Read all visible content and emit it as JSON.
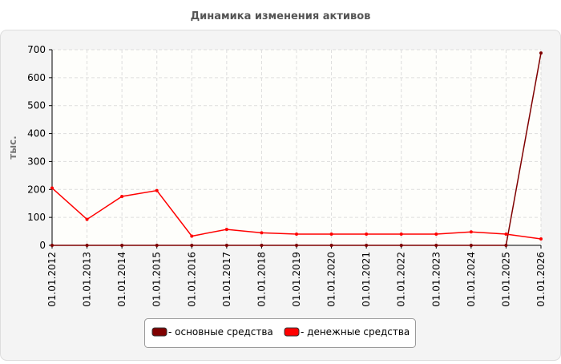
{
  "chart_data": {
    "type": "line",
    "title": "Динамика изменения активов",
    "y_label": "тыс.",
    "categories": [
      "01.01.2012",
      "01.01.2013",
      "01.01.2014",
      "01.01.2015",
      "01.01.2016",
      "01.01.2017",
      "01.01.2018",
      "01.01.2019",
      "01.01.2020",
      "01.01.2021",
      "01.01.2022",
      "01.01.2023",
      "01.01.2024",
      "01.01.2025",
      "01.01.2026"
    ],
    "series": [
      {
        "name": "- основные средства",
        "color": "#7f0000",
        "values": [
          0,
          0,
          0,
          0,
          0,
          0,
          0,
          0,
          0,
          0,
          0,
          0,
          0,
          0,
          688
        ]
      },
      {
        "name": "- денежные средства",
        "color": "#ff0000",
        "values": [
          205,
          93,
          175,
          196,
          33,
          57,
          45,
          40,
          40,
          40,
          40,
          40,
          48,
          40,
          23
        ]
      }
    ],
    "ylim": [
      0,
      700
    ],
    "yticks": [
      0,
      100,
      200,
      300,
      400,
      500,
      600,
      700
    ],
    "grid": true
  }
}
